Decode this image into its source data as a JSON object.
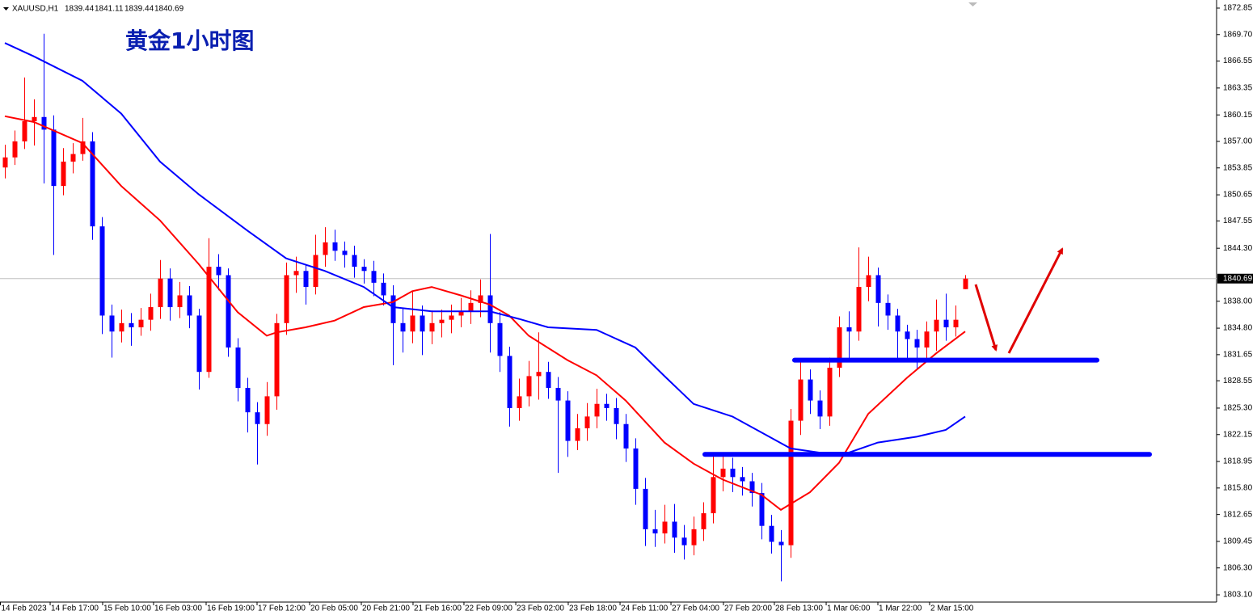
{
  "chart_data": {
    "type": "candlestick",
    "symbol": "XAUUSD,H1",
    "title": "黄金1小时图",
    "open": [
      1853.9,
      1855.1,
      1857.0,
      1859.4,
      1859.9,
      1858.4,
      1851.7,
      1854.6,
      1855.5,
      1857.0,
      1846.9,
      1836.3,
      1834.4,
      1835.4,
      1834.9,
      1835.8,
      1837.3,
      1840.7,
      1837.3,
      1838.7,
      1836.3,
      1829.6,
      1842.1,
      1841.1,
      1832.5,
      1827.7,
      1824.8,
      1823.4,
      1826.7,
      1835.4,
      1841.1,
      1841.6,
      1839.7,
      1843.5,
      1845.0,
      1844.0,
      1843.5,
      1842.1,
      1841.6,
      1840.2,
      1838.7,
      1835.4,
      1834.4,
      1836.3,
      1834.4,
      1835.4,
      1835.8,
      1836.3,
      1836.8,
      1837.8,
      1838.7,
      1835.4,
      1831.5,
      1825.3,
      1826.7,
      1829.1,
      1829.6,
      1827.7,
      1826.2,
      1821.4,
      1822.9,
      1824.3,
      1825.8,
      1825.3,
      1823.4,
      1820.5,
      1815.7,
      1810.9,
      1810.4,
      1811.8,
      1809.9,
      1809.0,
      1810.9,
      1812.8,
      1817.1,
      1818.1,
      1817.1,
      1816.6,
      1815.2,
      1811.3,
      1809.4,
      1809.0,
      1823.8,
      1828.7,
      1826.2,
      1824.3,
      1830.1,
      1834.9,
      1834.4,
      1839.7,
      1841.1,
      1837.8,
      1836.3,
      1834.4,
      1833.5,
      1832.5,
      1834.4,
      1835.8,
      1834.9,
      1839.44
    ],
    "high": [
      1856.6,
      1858.3,
      1864.6,
      1862.0,
      1869.8,
      1860.1,
      1856.2,
      1856.8,
      1859.8,
      1858.1,
      1848.0,
      1837.6,
      1837.0,
      1836.6,
      1837.2,
      1838.9,
      1842.9,
      1841.9,
      1840.3,
      1839.8,
      1837.1,
      1845.5,
      1843.6,
      1841.9,
      1833.6,
      1828.9,
      1826.0,
      1828.4,
      1836.5,
      1842.6,
      1843.3,
      1842.4,
      1845.9,
      1846.8,
      1846.5,
      1845.1,
      1844.6,
      1843.0,
      1842.8,
      1841.3,
      1839.9,
      1837.2,
      1839.2,
      1837.5,
      1836.9,
      1837.0,
      1837.6,
      1838.4,
      1839.3,
      1840.6,
      1846.0,
      1836.7,
      1832.6,
      1828.8,
      1830.9,
      1834.3,
      1830.8,
      1829.0,
      1827.3,
      1824.6,
      1825.9,
      1827.6,
      1827.0,
      1826.5,
      1824.6,
      1821.7,
      1817.0,
      1813.2,
      1813.8,
      1813.9,
      1811.4,
      1812.4,
      1814.1,
      1819.8,
      1819.6,
      1819.4,
      1818.3,
      1817.6,
      1816.4,
      1812.6,
      1810.8,
      1825.2,
      1831.2,
      1829.9,
      1827.4,
      1831.3,
      1836.2,
      1836.8,
      1844.4,
      1843.3,
      1842.0,
      1838.8,
      1837.1,
      1835.2,
      1834.6,
      1835.6,
      1838.2,
      1838.9,
      1837.5,
      1841.11
    ],
    "low": [
      1852.6,
      1854.2,
      1856.1,
      1856.5,
      1852.0,
      1843.5,
      1850.6,
      1853.2,
      1854.7,
      1845.3,
      1834.1,
      1831.3,
      1833.1,
      1832.7,
      1833.9,
      1834.5,
      1835.9,
      1835.7,
      1836.0,
      1834.8,
      1827.5,
      1828.9,
      1839.3,
      1831.4,
      1826.1,
      1822.4,
      1818.6,
      1822.0,
      1825.1,
      1834.0,
      1839.0,
      1837.6,
      1838.8,
      1842.1,
      1842.8,
      1842.0,
      1840.8,
      1840.1,
      1838.6,
      1837.5,
      1830.4,
      1831.9,
      1833.0,
      1831.6,
      1832.9,
      1833.7,
      1834.2,
      1834.9,
      1835.3,
      1836.1,
      1831.9,
      1829.6,
      1823.1,
      1823.8,
      1825.5,
      1826.3,
      1826.4,
      1817.6,
      1819.5,
      1820.3,
      1821.4,
      1822.9,
      1823.8,
      1821.6,
      1818.9,
      1813.8,
      1808.9,
      1808.8,
      1809.2,
      1808.1,
      1807.3,
      1807.8,
      1809.5,
      1811.6,
      1815.4,
      1815.3,
      1814.9,
      1813.6,
      1809.7,
      1808.0,
      1804.7,
      1807.5,
      1822.1,
      1824.6,
      1822.8,
      1823.2,
      1829.0,
      1831.2,
      1833.3,
      1838.0,
      1835.0,
      1834.6,
      1830.8,
      1831.1,
      1830.0,
      1830.9,
      1832.1,
      1833.3,
      1833.8,
      1839.44
    ],
    "close": [
      1855.1,
      1857.0,
      1859.4,
      1859.9,
      1858.4,
      1851.7,
      1854.6,
      1855.5,
      1857.0,
      1846.9,
      1836.3,
      1834.4,
      1835.4,
      1834.9,
      1835.8,
      1837.3,
      1840.7,
      1837.3,
      1838.7,
      1836.3,
      1829.6,
      1842.1,
      1841.1,
      1832.5,
      1827.7,
      1824.8,
      1823.4,
      1826.7,
      1835.4,
      1841.1,
      1841.6,
      1839.7,
      1843.5,
      1845.0,
      1844.0,
      1843.5,
      1842.1,
      1841.6,
      1840.2,
      1838.7,
      1835.4,
      1834.4,
      1836.3,
      1834.4,
      1835.4,
      1835.8,
      1836.3,
      1836.8,
      1837.8,
      1838.7,
      1835.4,
      1831.5,
      1825.3,
      1826.7,
      1829.1,
      1829.6,
      1827.7,
      1826.2,
      1821.4,
      1822.9,
      1824.3,
      1825.8,
      1825.3,
      1823.4,
      1820.5,
      1815.7,
      1810.9,
      1810.4,
      1811.8,
      1809.9,
      1809.0,
      1810.9,
      1812.8,
      1817.1,
      1818.1,
      1817.1,
      1816.6,
      1815.2,
      1811.3,
      1809.4,
      1809.0,
      1823.8,
      1828.7,
      1826.2,
      1824.3,
      1830.1,
      1834.9,
      1834.4,
      1839.7,
      1841.1,
      1837.8,
      1836.3,
      1834.4,
      1833.5,
      1832.5,
      1834.4,
      1835.8,
      1834.9,
      1835.8,
      1840.69
    ],
    "up_color": "#ff0000",
    "down_color": "#0000ff",
    "moving_averages": [
      {
        "color": "#ff0000",
        "x": [
          0,
          3,
          8,
          12,
          16,
          20,
          24,
          27,
          28,
          31,
          34,
          37,
          40,
          42,
          44,
          47,
          50,
          52,
          54,
          58,
          61,
          64,
          68,
          71,
          74,
          78,
          80,
          83,
          86,
          89,
          93,
          96,
          99
        ],
        "values": [
          1860.0,
          1859.3,
          1856.8,
          1851.7,
          1847.6,
          1842.4,
          1836.7,
          1833.9,
          1834.3,
          1834.9,
          1835.7,
          1837.3,
          1837.9,
          1839.2,
          1839.7,
          1838.7,
          1837.6,
          1836.3,
          1833.9,
          1831.0,
          1829.2,
          1826.2,
          1821.2,
          1818.7,
          1816.8,
          1815.0,
          1813.2,
          1815.3,
          1818.8,
          1824.6,
          1828.9,
          1831.8,
          1834.4
        ]
      },
      {
        "color": "#0000ff",
        "x": [
          0,
          3,
          8,
          12,
          16,
          20,
          25,
          29,
          33,
          37,
          40,
          44,
          50,
          53,
          56,
          61,
          65,
          68,
          71,
          75,
          78,
          81,
          84,
          87,
          90,
          94,
          97,
          99
        ],
        "values": [
          1868.7,
          1867.1,
          1864.2,
          1860.3,
          1854.6,
          1850.7,
          1846.4,
          1843.1,
          1841.6,
          1839.7,
          1837.3,
          1836.8,
          1836.8,
          1835.9,
          1834.9,
          1834.6,
          1832.5,
          1829.1,
          1825.8,
          1824.3,
          1822.4,
          1820.5,
          1820.0,
          1820.0,
          1821.2,
          1821.9,
          1822.7,
          1824.3
        ]
      }
    ],
    "levels": [
      {
        "value": 1831.0,
        "color": "#0000ff"
      },
      {
        "value": 1819.8,
        "color": "#0000ff"
      }
    ],
    "xlim": [
      -0.5,
      99.5
    ],
    "xticks": [
      {
        "value": -0.5,
        "label": "14 Feb 2023"
      },
      {
        "value": 4.67,
        "label": "14 Feb 17:00"
      },
      {
        "value": 10.08,
        "label": "15 Feb 10:00"
      },
      {
        "value": 15.33,
        "label": "16 Feb 03:00"
      },
      {
        "value": 20.75,
        "label": "16 Feb 19:00"
      },
      {
        "value": 26,
        "label": "17 Feb 12:00"
      },
      {
        "value": 31.42,
        "label": "20 Feb 05:00"
      },
      {
        "value": 36.75,
        "label": "20 Feb 21:00"
      },
      {
        "value": 42.08,
        "label": "21 Feb 16:00"
      },
      {
        "value": 47.33,
        "label": "22 Feb 09:00"
      },
      {
        "value": 52.67,
        "label": "23 Feb 02:00"
      },
      {
        "value": 58.08,
        "label": "23 Feb 18:00"
      },
      {
        "value": 63.42,
        "label": "24 Feb 11:00"
      },
      {
        "value": 68.67,
        "label": "27 Feb 04:00"
      },
      {
        "value": 74.08,
        "label": "27 Feb 20:00"
      },
      {
        "value": 79.33,
        "label": "28 Feb 13:00"
      },
      {
        "value": 84.67,
        "label": "1 Mar 06:00"
      },
      {
        "value": 90,
        "label": "1 Mar 22:00"
      },
      {
        "value": 95.33,
        "label": "2 Mar 15:00"
      }
    ],
    "ylim": [
      1802.24,
      1873.81
    ],
    "yticks": [
      1872.85,
      {
        "value": 1869.7,
        "label": "1869.70"
      },
      1866.55,
      1863.35,
      1860.15,
      {
        "value": 1857,
        "label": "1857.00"
      },
      1853.85,
      1850.65,
      1847.55,
      {
        "value": 1844.3,
        "label": "1844.30"
      },
      {
        "value": 1838,
        "label": "1838.00"
      },
      {
        "value": 1834.8,
        "label": "1834.80"
      },
      1831.65,
      1828.55,
      {
        "value": 1825.3,
        "label": "1825.30"
      },
      1822.15,
      1818.95,
      {
        "value": 1815.8,
        "label": "1815.80"
      },
      1812.65,
      1809.45,
      {
        "value": 1806.3,
        "label": "1806.30"
      },
      {
        "value": 1803.1,
        "label": "1803.10"
      }
    ]
  }
}
